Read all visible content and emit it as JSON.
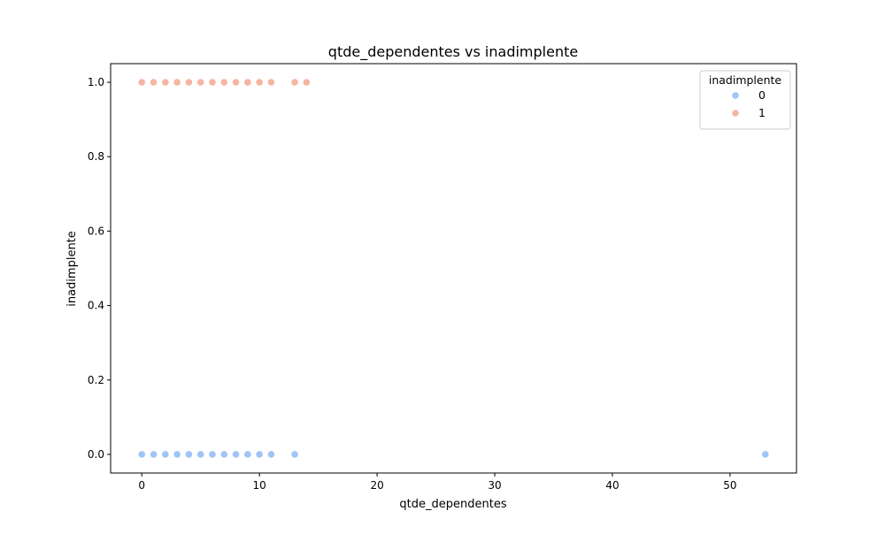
{
  "chart_data": {
    "type": "scatter",
    "title": "qtde_dependentes vs inadimplente",
    "xlabel": "qtde_dependentes",
    "ylabel": "inadimplente",
    "xlim": [
      -2.65,
      55.65
    ],
    "ylim": [
      -0.05,
      1.05
    ],
    "xticks": [
      0,
      10,
      20,
      30,
      40,
      50
    ],
    "xtick_labels": [
      "0",
      "10",
      "20",
      "30",
      "40",
      "50"
    ],
    "yticks": [
      0.0,
      0.2,
      0.4,
      0.6,
      0.8,
      1.0
    ],
    "ytick_labels": [
      "0.0",
      "0.2",
      "0.4",
      "0.6",
      "0.8",
      "1.0"
    ],
    "grid": false,
    "legend": {
      "title": "inadimplente",
      "placement": "top-right"
    },
    "series": [
      {
        "name": "0",
        "color": "#a1c4f7",
        "x": [
          0,
          1,
          2,
          3,
          4,
          5,
          6,
          7,
          8,
          9,
          10,
          11,
          13,
          53
        ],
        "y": [
          0,
          0,
          0,
          0,
          0,
          0,
          0,
          0,
          0,
          0,
          0,
          0,
          0,
          0
        ]
      },
      {
        "name": "1",
        "color": "#f4b6a3",
        "x": [
          0,
          1,
          2,
          3,
          4,
          5,
          6,
          7,
          8,
          9,
          10,
          11,
          13,
          14
        ],
        "y": [
          1,
          1,
          1,
          1,
          1,
          1,
          1,
          1,
          1,
          1,
          1,
          1,
          1,
          1
        ]
      }
    ]
  }
}
